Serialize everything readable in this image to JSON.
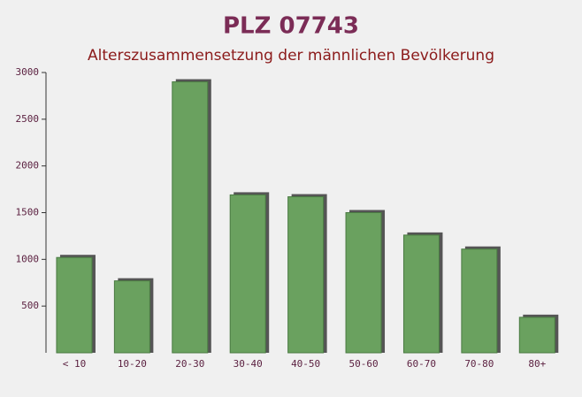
{
  "chart_data": {
    "type": "bar",
    "title": "PLZ 07743",
    "subtitle": "Alterszusammensetzung der männlichen Bevölkerung",
    "categories": [
      "< 10",
      "10-20",
      "20-30",
      "30-40",
      "40-50",
      "50-60",
      "60-70",
      "70-80",
      "80+"
    ],
    "values": [
      1020,
      770,
      2900,
      1690,
      1670,
      1500,
      1260,
      1110,
      380
    ],
    "color": "#6aa15f",
    "ylim": [
      0,
      3000
    ],
    "yticks": [
      500,
      1000,
      1500,
      2000,
      2500,
      3000
    ],
    "grid": false
  }
}
